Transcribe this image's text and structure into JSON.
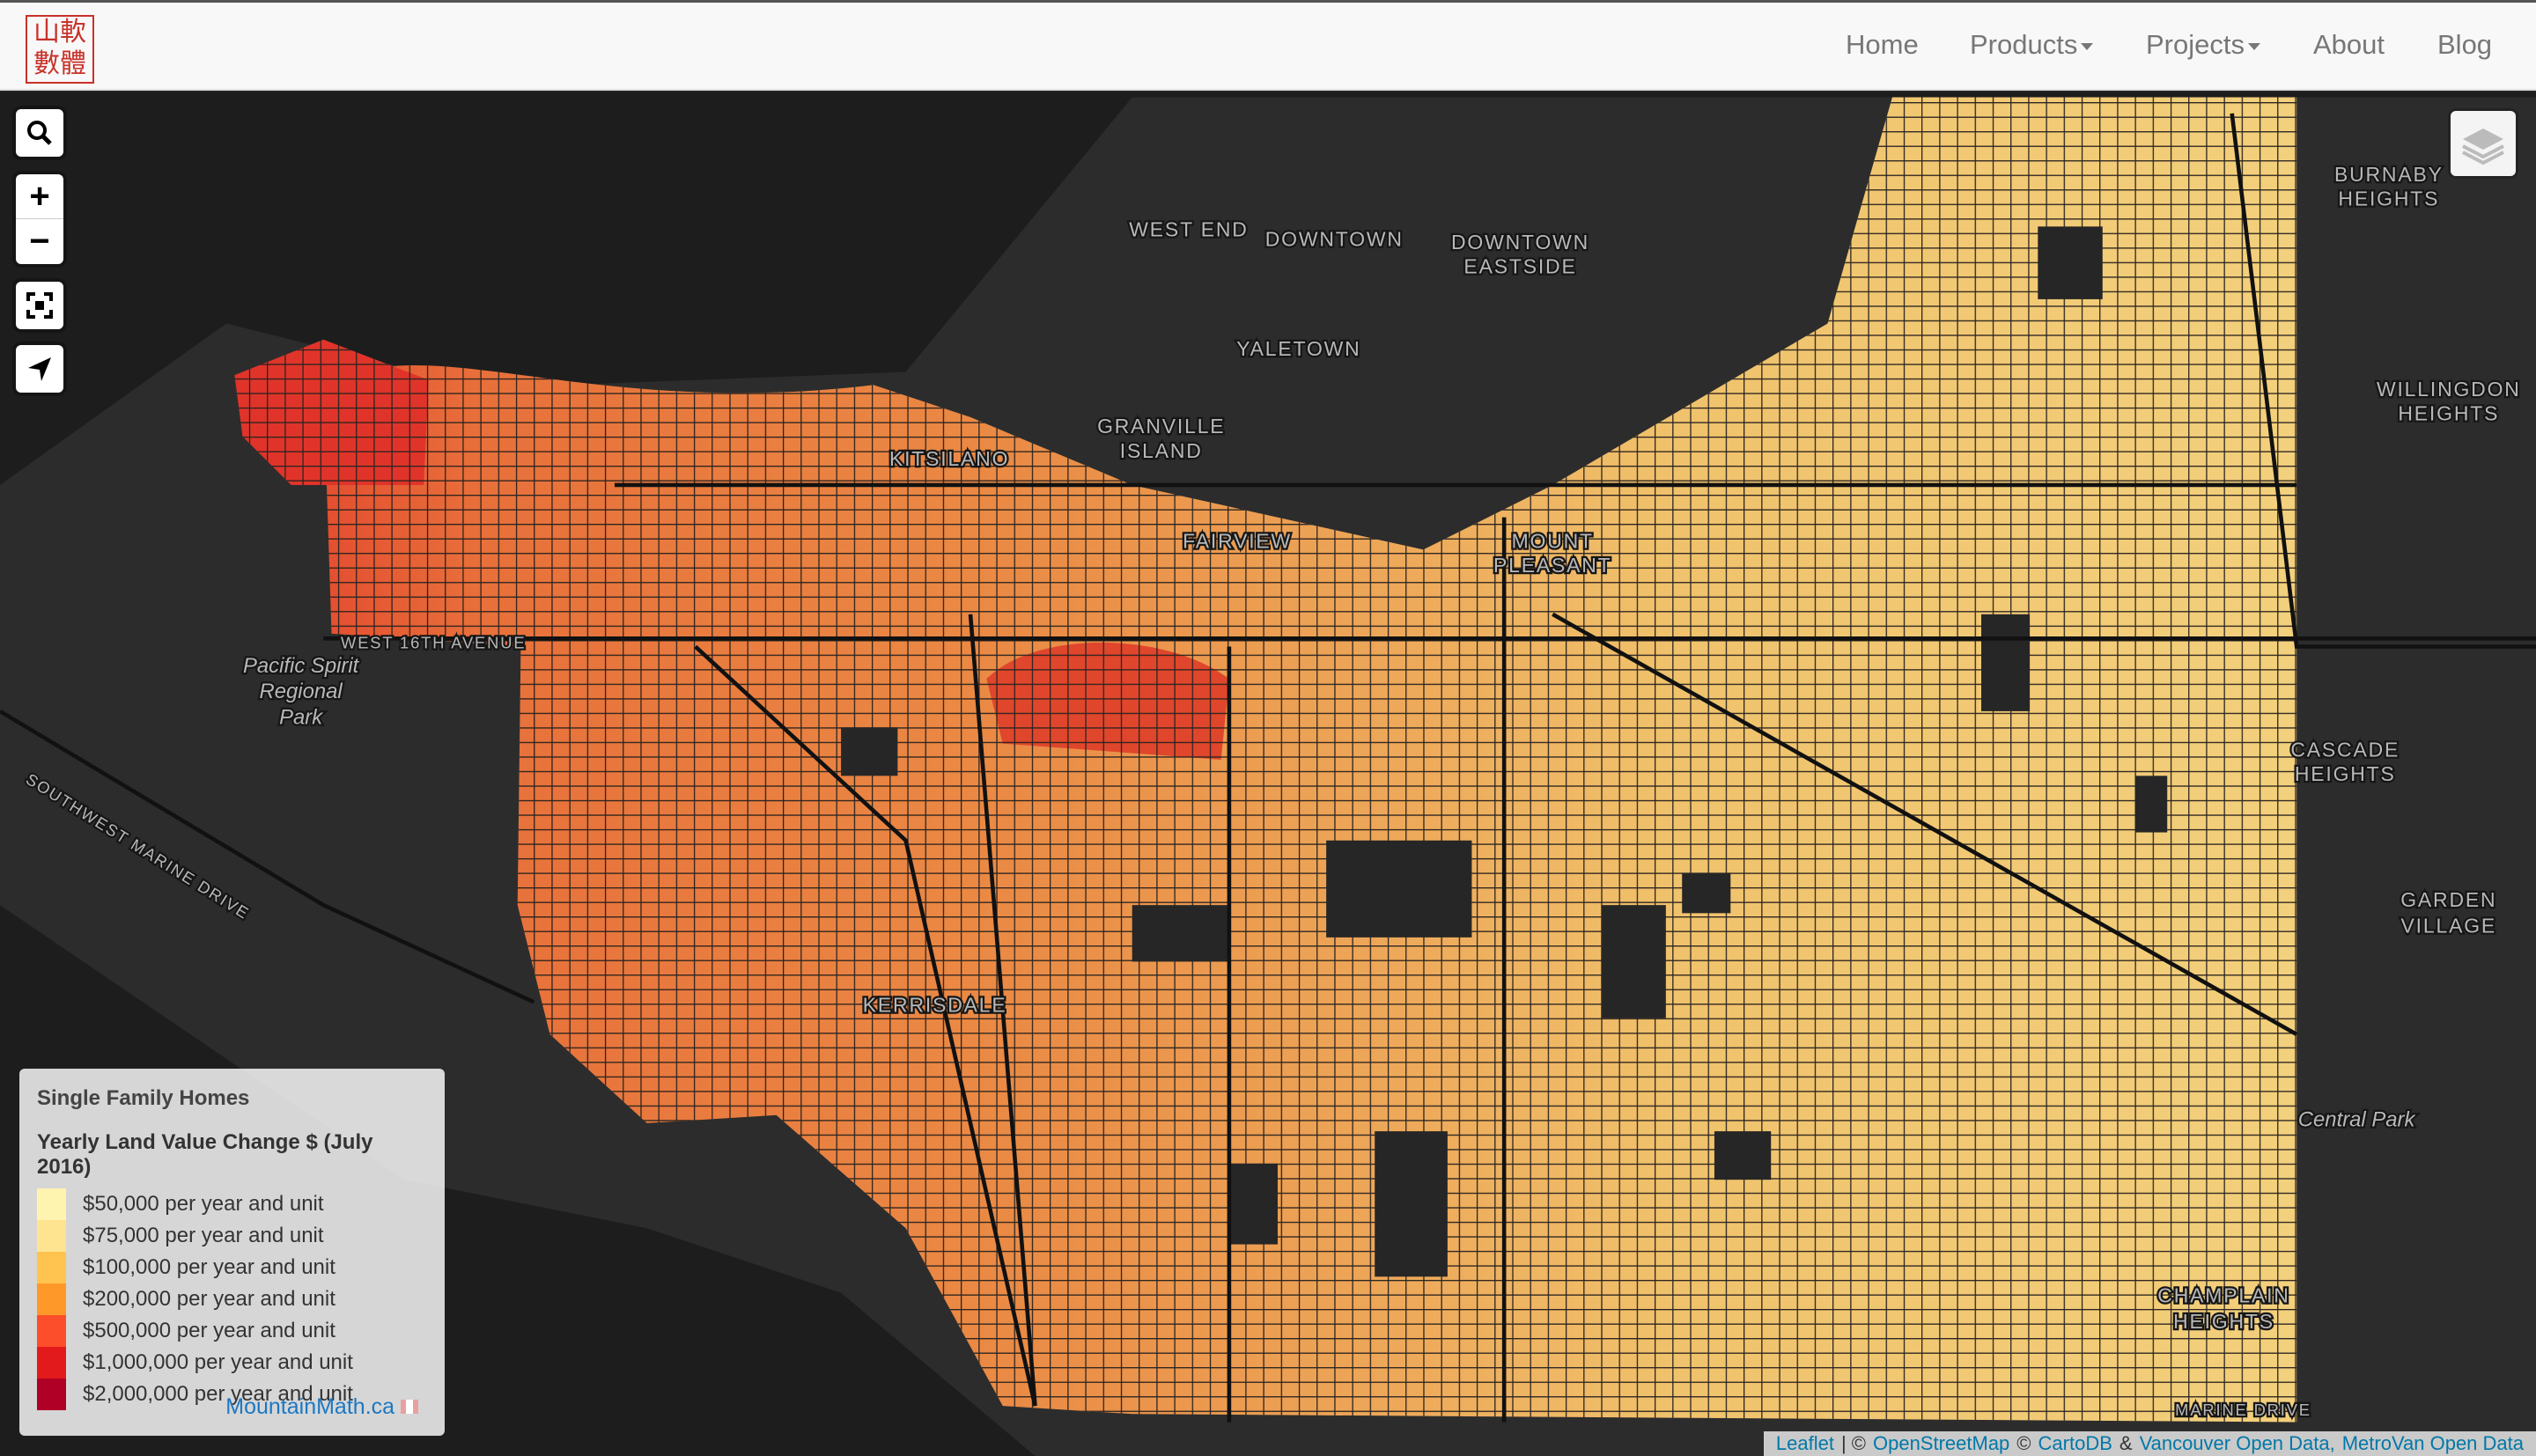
{
  "navbar": {
    "logo_lines": [
      "山軟",
      "數體"
    ],
    "links": [
      "Home",
      "Products",
      "Projects",
      "About",
      "Blog"
    ]
  },
  "map": {
    "controls": {
      "zoom_in": "+",
      "zoom_out": "−"
    },
    "labels": [
      [
        "WEST END"
      ],
      [
        "DOWNTOWN"
      ],
      [
        "DOWNTOWN",
        "EASTSIDE"
      ],
      [
        "YALETOWN"
      ],
      [
        "GRANVILLE",
        "ISLAND"
      ],
      [
        "KITSILANO"
      ],
      [
        "FAIRVIEW"
      ],
      [
        "MOUNT",
        "PLEASANT"
      ],
      [
        "BURNABY",
        "HEIGHTS"
      ],
      [
        "WILLINGDON",
        "HEIGHTS"
      ],
      [
        "CASCADE",
        "HEIGHTS"
      ],
      [
        "GARDEN",
        "VILLAGE"
      ],
      [
        "KERRISDALE"
      ],
      [
        "CHAMPLAIN",
        "HEIGHTS"
      ],
      [
        "Pacific Spirit",
        "Regional",
        "Park"
      ],
      [
        "Central Park"
      ],
      [
        "SOUTHWEST MARINE DRIVE"
      ],
      [
        "WEST 16TH AVENUE"
      ],
      [
        "MARINE DRIVE"
      ]
    ]
  },
  "legend": {
    "title": "Single Family Homes",
    "subtitle": "Yearly Land Value Change $ (July 2016)",
    "items": [
      {
        "label": "$50,000 per year and unit",
        "color": "#fff3b0"
      },
      {
        "label": "$75,000 per year and unit",
        "color": "#fee391"
      },
      {
        "label": "$100,000 per year and unit",
        "color": "#fec44f"
      },
      {
        "label": "$200,000 per year and unit",
        "color": "#fe9929"
      },
      {
        "label": "$500,000 per year and unit",
        "color": "#fc4e2a"
      },
      {
        "label": "$1,000,000 per year and unit",
        "color": "#e31a1c"
      },
      {
        "label": "$2,000,000 per year and unit",
        "color": "#b10026"
      }
    ],
    "credit": "MountainMath.ca"
  },
  "attribution": {
    "parts": [
      {
        "text": "Leaflet",
        "link": true
      },
      {
        "text": "| ©",
        "link": false
      },
      {
        "text": "OpenStreetMap",
        "link": true
      },
      {
        "text": "©",
        "link": false
      },
      {
        "text": "CartoDB",
        "link": true
      },
      {
        "text": "&",
        "link": false
      },
      {
        "text": "Vancouver Open Data,",
        "link": true
      },
      {
        "text": "MetroVan Open Data",
        "link": true
      }
    ]
  }
}
